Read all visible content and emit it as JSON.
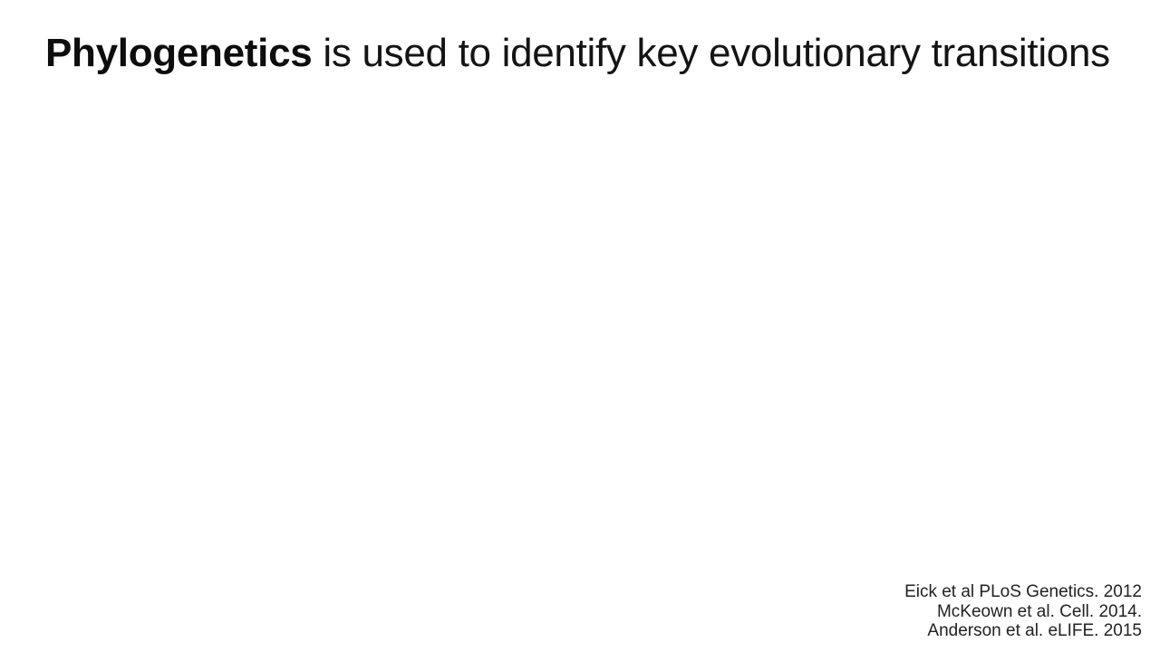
{
  "slide": {
    "title": {
      "bold_part": "Phylogenetics",
      "rest": " is used to identify key evolutionary transitions"
    },
    "references": [
      "Eick et al PLoS Genetics. 2012",
      "McKeown et al. Cell. 2014.",
      "Anderson et al. eLIFE. 2015"
    ]
  },
  "colors": {
    "background": "#ffffff",
    "text": "#141414"
  }
}
